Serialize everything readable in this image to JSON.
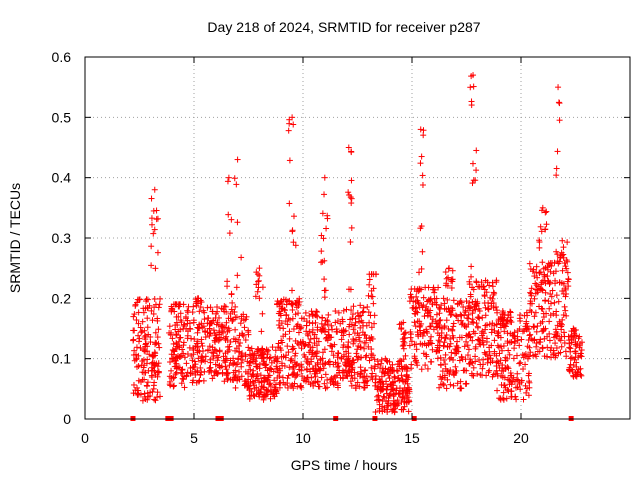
{
  "chart_data": {
    "type": "scatter",
    "title": "Day 218 of 2024, SRMTID for receiver p287",
    "xlabel": "GPS time / hours",
    "ylabel": "SRMTID / TECUs",
    "xlim": [
      0,
      25
    ],
    "ylim": [
      0,
      0.6
    ],
    "x_ticks": [
      0,
      5,
      10,
      15,
      20
    ],
    "x_tick_labels": [
      "0",
      "5",
      "10",
      "15",
      "20"
    ],
    "y_ticks": [
      0,
      0.1,
      0.2,
      0.3,
      0.4,
      0.5,
      0.6
    ],
    "y_tick_labels": [
      "0",
      "0.1",
      "0.2",
      "0.3",
      "0.4",
      "0.5",
      "0.6"
    ],
    "grid": true,
    "marker": "plus",
    "color": "#ff0000",
    "series": [
      {
        "name": "SRMTID",
        "clusters": [
          {
            "x": [
              2.2,
              3.45
            ],
            "ymin": 0.03,
            "ymax": 0.2,
            "peak_x": 3.2,
            "peak_y": 0.38,
            "n": 150
          },
          {
            "x": [
              3.85,
              4.75
            ],
            "ymin": 0.05,
            "ymax": 0.19,
            "peak_x": 4.2,
            "peak_y": 0.19,
            "n": 110
          },
          {
            "x": [
              4.8,
              5.9
            ],
            "ymin": 0.06,
            "ymax": 0.19,
            "peak_x": 5.2,
            "peak_y": 0.2,
            "n": 110
          },
          {
            "x": [
              5.9,
              6.9
            ],
            "ymin": 0.06,
            "ymax": 0.19,
            "peak_x": 6.6,
            "peak_y": 0.4,
            "n": 110
          },
          {
            "x": [
              6.9,
              7.5
            ],
            "ymin": 0.05,
            "ymax": 0.18,
            "peak_x": 7.0,
            "peak_y": 0.43,
            "n": 60
          },
          {
            "x": [
              7.5,
              8.8
            ],
            "ymin": 0.03,
            "ymax": 0.12,
            "peak_x": 8.0,
            "peak_y": 0.25,
            "n": 150
          },
          {
            "x": [
              8.8,
              10.0
            ],
            "ymin": 0.05,
            "ymax": 0.2,
            "peak_x": 9.5,
            "peak_y": 0.5,
            "n": 140
          },
          {
            "x": [
              10.0,
              11.8
            ],
            "ymin": 0.05,
            "ymax": 0.18,
            "peak_x": 11.0,
            "peak_y": 0.4,
            "n": 180
          },
          {
            "x": [
              11.8,
              13.0
            ],
            "ymin": 0.05,
            "ymax": 0.19,
            "peak_x": 12.1,
            "peak_y": 0.45,
            "n": 140
          },
          {
            "x": [
              13.0,
              13.3
            ],
            "ymin": 0.06,
            "ymax": 0.24,
            "peak_x": 13.2,
            "peak_y": 0.24,
            "n": 30
          },
          {
            "x": [
              13.3,
              14.9
            ],
            "ymin": 0.01,
            "ymax": 0.1,
            "peak_x": 14.6,
            "peak_y": 0.16,
            "n": 190
          },
          {
            "x": [
              14.9,
              16.2
            ],
            "ymin": 0.08,
            "ymax": 0.22,
            "peak_x": 15.4,
            "peak_y": 0.48,
            "n": 130
          },
          {
            "x": [
              16.2,
              17.6
            ],
            "ymin": 0.05,
            "ymax": 0.2,
            "peak_x": 16.7,
            "peak_y": 0.25,
            "n": 150
          },
          {
            "x": [
              17.6,
              18.9
            ],
            "ymin": 0.07,
            "ymax": 0.23,
            "peak_x": 17.8,
            "peak_y": 0.57,
            "n": 150
          },
          {
            "x": [
              18.9,
              20.4
            ],
            "ymin": 0.03,
            "ymax": 0.18,
            "peak_x": 19.2,
            "peak_y": 0.15,
            "n": 160
          },
          {
            "x": [
              20.4,
              21.6
            ],
            "ymin": 0.1,
            "ymax": 0.26,
            "peak_x": 21.0,
            "peak_y": 0.35,
            "n": 130
          },
          {
            "x": [
              21.6,
              22.2
            ],
            "ymin": 0.1,
            "ymax": 0.3,
            "peak_x": 21.7,
            "peak_y": 0.55,
            "n": 70
          },
          {
            "x": [
              22.2,
              22.8
            ],
            "ymin": 0.07,
            "ymax": 0.14,
            "peak_x": 22.4,
            "peak_y": 0.15,
            "n": 60
          }
        ],
        "zero_markers_x": [
          2.2,
          3.8,
          3.95,
          6.1,
          6.25,
          11.5,
          13.3,
          15.1,
          22.3
        ]
      }
    ]
  }
}
